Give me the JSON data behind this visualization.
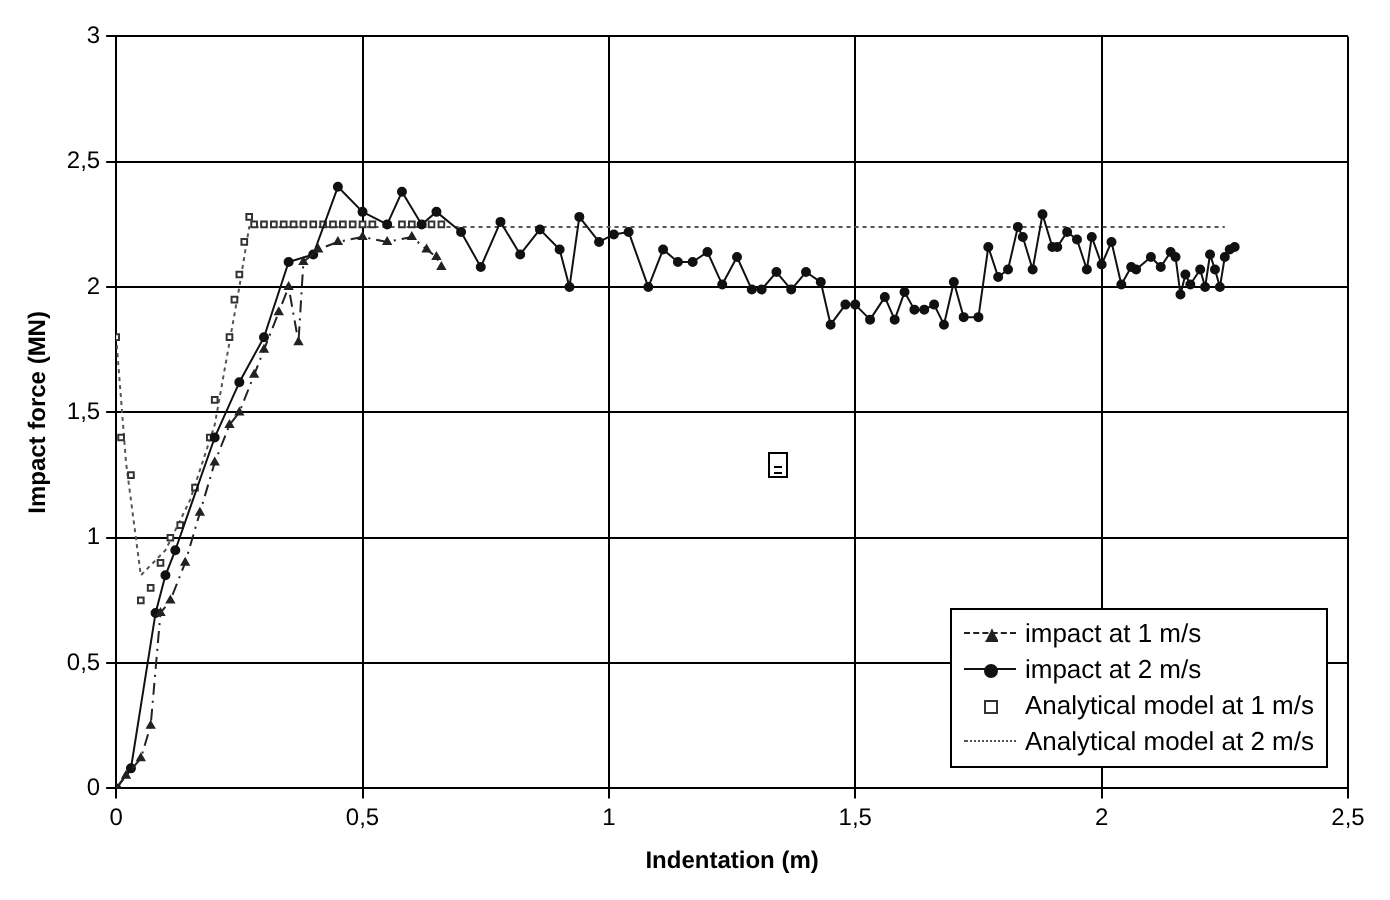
{
  "chart_data": {
    "type": "line",
    "xlabel": "Indentation (m)",
    "ylabel": "Impact force (MN)",
    "xlim": [
      0,
      2.5
    ],
    "ylim": [
      0,
      3
    ],
    "xticks": [
      0,
      {
        "value": 0.5,
        "label": "0,5"
      },
      1,
      {
        "value": 1.5,
        "label": "1,5"
      },
      2,
      {
        "value": 2.5,
        "label": "2,5"
      }
    ],
    "yticks": [
      0,
      {
        "value": 0.5,
        "label": "0,5"
      },
      1,
      {
        "value": 1.5,
        "label": "1,5"
      },
      2,
      {
        "value": 2.5,
        "label": "2,5"
      },
      3
    ],
    "grid": true,
    "legend": "bottom right",
    "series": [
      {
        "name": "impact at 1 m/s",
        "type": "line",
        "color": "#222222",
        "marker": "triangle",
        "line_style": "dashed",
        "x": [
          0,
          0.02,
          0.05,
          0.07,
          0.09,
          0.11,
          0.14,
          0.17,
          0.2,
          0.23,
          0.25,
          0.28,
          0.3,
          0.33,
          0.35,
          0.37,
          0.38,
          0.41,
          0.45,
          0.5,
          0.55,
          0.6,
          0.63,
          0.65,
          0.66
        ],
        "values": [
          0,
          0.05,
          0.12,
          0.25,
          0.7,
          0.75,
          0.9,
          1.1,
          1.3,
          1.45,
          1.5,
          1.65,
          1.75,
          1.9,
          2.0,
          1.78,
          2.1,
          2.15,
          2.18,
          2.2,
          2.18,
          2.2,
          2.15,
          2.12,
          2.08
        ]
      },
      {
        "name": "impact at 2 m/s",
        "type": "line",
        "color": "#111111",
        "marker": "circle",
        "line_style": "solid",
        "x": [
          0,
          0.03,
          0.08,
          0.1,
          0.12,
          0.2,
          0.25,
          0.3,
          0.35,
          0.4,
          0.45,
          0.5,
          0.55,
          0.58,
          0.62,
          0.65,
          0.7,
          0.74,
          0.78,
          0.82,
          0.86,
          0.9,
          0.92,
          0.94,
          0.98,
          1.01,
          1.04,
          1.08,
          1.11,
          1.14,
          1.17,
          1.2,
          1.23,
          1.26,
          1.29,
          1.31,
          1.34,
          1.37,
          1.4,
          1.43,
          1.45,
          1.48,
          1.5,
          1.53,
          1.56,
          1.58,
          1.6,
          1.62,
          1.64,
          1.66,
          1.68,
          1.7,
          1.72,
          1.75,
          1.77,
          1.79,
          1.81,
          1.83,
          1.84,
          1.86,
          1.88,
          1.9,
          1.91,
          1.93,
          1.95,
          1.97,
          1.98,
          2.0,
          2.02,
          2.04,
          2.06,
          2.07,
          2.1,
          2.12,
          2.14,
          2.15,
          2.16,
          2.17,
          2.18,
          2.2,
          2.21,
          2.22,
          2.23,
          2.24,
          2.25,
          2.26,
          2.27
        ],
        "values": [
          0,
          0.08,
          0.7,
          0.85,
          0.95,
          1.4,
          1.62,
          1.8,
          2.1,
          2.13,
          2.4,
          2.3,
          2.25,
          2.38,
          2.25,
          2.3,
          2.22,
          2.08,
          2.26,
          2.13,
          2.23,
          2.15,
          2.0,
          2.28,
          2.18,
          2.21,
          2.22,
          2.0,
          2.15,
          2.1,
          2.1,
          2.14,
          2.01,
          2.12,
          1.99,
          1.99,
          2.06,
          1.99,
          2.06,
          2.02,
          1.85,
          1.93,
          1.93,
          1.87,
          1.96,
          1.87,
          1.98,
          1.91,
          1.91,
          1.93,
          1.85,
          2.02,
          1.88,
          1.88,
          2.16,
          2.04,
          2.07,
          2.24,
          2.2,
          2.07,
          2.29,
          2.16,
          2.16,
          2.22,
          2.19,
          2.07,
          2.2,
          2.09,
          2.18,
          2.01,
          2.08,
          2.07,
          2.12,
          2.08,
          2.14,
          2.12,
          1.97,
          2.05,
          2.01,
          2.07,
          2.0,
          2.13,
          2.07,
          2.0,
          2.12,
          2.15,
          2.16
        ]
      },
      {
        "name": "Analytical model at 1 m/s",
        "type": "scatter",
        "color": "#333333",
        "marker": "square",
        "x": [
          0,
          0.01,
          0.03,
          0.05,
          0.07,
          0.09,
          0.11,
          0.13,
          0.16,
          0.19,
          0.2,
          0.23,
          0.24,
          0.25,
          0.26,
          0.27,
          0.28,
          0.3,
          0.32,
          0.34,
          0.36,
          0.38,
          0.4,
          0.42,
          0.44,
          0.46,
          0.48,
          0.5,
          0.52,
          0.54,
          0.56,
          0.58,
          0.6,
          0.62,
          0.64,
          0.66
        ],
        "values": [
          1.8,
          1.4,
          1.25,
          0.75,
          0.8,
          0.9,
          1.0,
          1.05,
          1.2,
          1.4,
          1.55,
          1.8,
          1.95,
          2.05,
          2.18,
          2.28,
          2.25,
          2.25,
          2.25,
          2.25,
          2.25,
          2.25,
          2.25,
          2.25,
          2.25,
          2.25,
          2.25,
          2.25,
          2.25,
          null,
          null,
          2.25,
          2.25,
          null,
          2.25,
          2.25
        ]
      },
      {
        "name": "Analytical model at 2 m/s",
        "type": "line",
        "color": "#555555",
        "marker": "none",
        "line_style": "dotted",
        "x": [
          0,
          0.02,
          0.05,
          0.1,
          0.15,
          0.2,
          0.25,
          0.27,
          2.25
        ],
        "values": [
          1.8,
          1.3,
          0.85,
          0.95,
          1.15,
          1.45,
          2.0,
          2.24,
          2.24
        ]
      }
    ]
  }
}
